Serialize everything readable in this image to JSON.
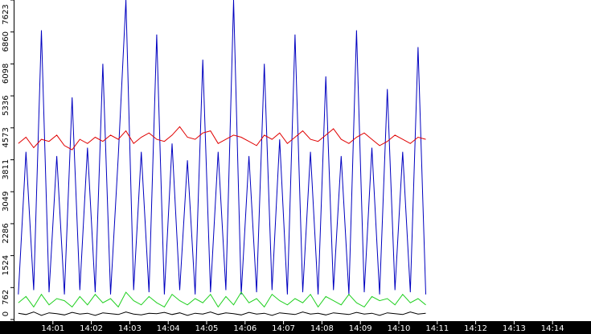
{
  "chart_data": {
    "type": "line",
    "x": [
      0.1,
      0.3,
      0.5,
      0.7,
      0.9,
      1.1,
      1.3,
      1.5,
      1.7,
      1.9,
      2.1,
      2.3,
      2.5,
      2.7,
      2.9,
      3.1,
      3.3,
      3.5,
      3.7,
      3.9,
      4.1,
      4.3,
      4.5,
      4.7,
      4.9,
      5.1,
      5.3,
      5.5,
      5.7,
      5.9,
      6.1,
      6.3,
      6.5,
      6.7,
      6.9,
      7.1,
      7.3,
      7.5,
      7.7,
      7.9,
      8.1,
      8.3,
      8.5,
      8.7,
      8.9,
      9.1,
      9.3,
      9.5,
      9.7,
      9.9,
      10.1,
      10.3,
      10.5,
      10.7
    ],
    "series": [
      {
        "color": "#0000c0",
        "values": [
          600,
          4000,
          700,
          6900,
          650,
          3900,
          600,
          5300,
          700,
          4100,
          650,
          6100,
          600,
          3900,
          7623,
          700,
          4000,
          650,
          6800,
          600,
          4200,
          700,
          3800,
          600,
          6200,
          650,
          4000,
          700,
          7623,
          600,
          3900,
          650,
          6100,
          700,
          4300,
          600,
          6800,
          650,
          4000,
          600,
          5800,
          700,
          3900,
          600,
          6900,
          650,
          4100,
          600,
          5500,
          700,
          4000,
          650,
          6500,
          600
        ]
      },
      {
        "color": "#e00000",
        "values": [
          4200,
          4350,
          4100,
          4300,
          4250,
          4400,
          4150,
          4050,
          4300,
          4200,
          4350,
          4250,
          4400,
          4300,
          4500,
          4200,
          4350,
          4450,
          4300,
          4250,
          4400,
          4600,
          4350,
          4300,
          4450,
          4500,
          4200,
          4300,
          4400,
          4350,
          4250,
          4150,
          4400,
          4300,
          4450,
          4200,
          4350,
          4500,
          4300,
          4250,
          4400,
          4550,
          4300,
          4200,
          4350,
          4450,
          4300,
          4150,
          4250,
          4400,
          4300,
          4200,
          4350,
          4300
        ]
      },
      {
        "color": "#20d020",
        "values": [
          400,
          550,
          300,
          600,
          350,
          500,
          450,
          300,
          550,
          350,
          600,
          400,
          500,
          300,
          650,
          450,
          350,
          550,
          400,
          300,
          600,
          450,
          350,
          500,
          400,
          600,
          300,
          550,
          350,
          650,
          400,
          500,
          300,
          600,
          450,
          350,
          500,
          400,
          600,
          300,
          550,
          450,
          350,
          600,
          400,
          300,
          550,
          450,
          500,
          350,
          600,
          400,
          500,
          350
        ]
      },
      {
        "color": "#000000",
        "values": [
          150,
          120,
          180,
          100,
          160,
          140,
          110,
          170,
          130,
          150,
          100,
          160,
          140,
          120,
          180,
          130,
          110,
          150,
          140,
          170,
          120,
          160,
          100,
          150,
          130,
          180,
          120,
          160,
          140,
          110,
          170,
          130,
          150,
          100,
          160,
          140,
          120,
          180,
          130,
          150,
          110,
          160,
          140,
          120,
          170,
          130,
          150,
          100,
          160,
          140,
          120,
          180,
          130,
          150
        ]
      }
    ],
    "xlim": [
      0,
      15
    ],
    "xticks": [
      {
        "value": 1,
        "label": "14:01"
      },
      {
        "value": 2,
        "label": "14:02"
      },
      {
        "value": 3,
        "label": "14:03"
      },
      {
        "value": 4,
        "label": "14:04"
      },
      {
        "value": 5,
        "label": "14:05"
      },
      {
        "value": 6,
        "label": "14:06"
      },
      {
        "value": 7,
        "label": "14:07"
      },
      {
        "value": 8,
        "label": "14:08"
      },
      {
        "value": 9,
        "label": "14:09"
      },
      {
        "value": 10,
        "label": "14:10"
      },
      {
        "value": 11,
        "label": "14:11"
      },
      {
        "value": 12,
        "label": "14:12"
      },
      {
        "value": 13,
        "label": "14:13"
      },
      {
        "value": 14,
        "label": "14:14"
      }
    ],
    "ylim": [
      0,
      7623
    ],
    "yticks": [
      0,
      762,
      1524,
      2286,
      3049,
      3811,
      4573,
      5336,
      6098,
      6860,
      7623
    ]
  }
}
